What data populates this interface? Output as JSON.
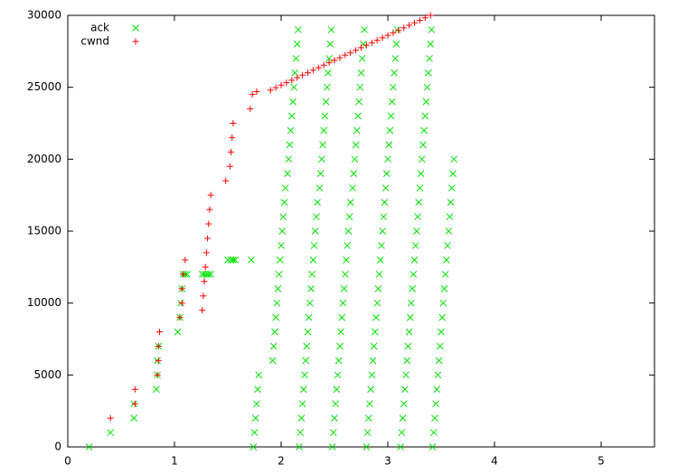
{
  "chart_data": {
    "type": "scatter",
    "xlim": [
      0,
      5.5
    ],
    "ylim": [
      0,
      30000
    ],
    "xticks": [
      0,
      1,
      2,
      3,
      4,
      5
    ],
    "yticks": [
      0,
      5000,
      10000,
      15000,
      20000,
      25000,
      30000
    ],
    "legend": "top-left",
    "series": [
      {
        "name": "ack",
        "color": "#00e000",
        "marker": "x",
        "x": [
          0.2,
          0.4,
          0.62,
          0.62,
          0.83,
          0.84,
          0.84,
          0.85,
          1.03,
          1.05,
          1.06,
          1.07,
          1.08,
          1.1,
          1.12,
          1.26,
          1.28,
          1.3,
          1.32,
          1.34,
          1.5,
          1.53,
          1.55,
          1.57,
          1.72,
          1.74,
          1.75,
          1.76,
          1.77,
          1.78,
          1.79,
          1.92,
          1.93,
          1.94,
          1.95,
          1.96,
          1.97,
          1.98,
          1.99,
          2.0,
          2.01,
          2.02,
          2.03,
          2.04,
          2.06,
          2.07,
          2.08,
          2.09,
          2.1,
          2.11,
          2.12,
          2.13,
          2.14,
          2.15,
          2.16,
          2.17,
          2.18,
          2.19,
          2.2,
          2.21,
          2.22,
          2.23,
          2.24,
          2.25,
          2.26,
          2.27,
          2.28,
          2.29,
          2.3,
          2.31,
          2.32,
          2.33,
          2.34,
          2.36,
          2.37,
          2.38,
          2.39,
          2.4,
          2.41,
          2.42,
          2.43,
          2.44,
          2.45,
          2.46,
          2.47,
          2.48,
          2.49,
          2.5,
          2.51,
          2.52,
          2.53,
          2.54,
          2.55,
          2.56,
          2.57,
          2.58,
          2.59,
          2.6,
          2.61,
          2.62,
          2.63,
          2.64,
          2.65,
          2.67,
          2.68,
          2.69,
          2.7,
          2.71,
          2.72,
          2.73,
          2.74,
          2.75,
          2.76,
          2.77,
          2.78,
          2.8,
          2.81,
          2.82,
          2.83,
          2.84,
          2.85,
          2.86,
          2.87,
          2.88,
          2.89,
          2.9,
          2.91,
          2.92,
          2.93,
          2.94,
          2.95,
          2.96,
          2.97,
          2.98,
          2.99,
          3.0,
          3.01,
          3.02,
          3.03,
          3.04,
          3.05,
          3.06,
          3.07,
          3.08,
          3.09,
          3.12,
          3.13,
          3.14,
          3.15,
          3.16,
          3.17,
          3.18,
          3.19,
          3.2,
          3.21,
          3.22,
          3.23,
          3.24,
          3.25,
          3.26,
          3.27,
          3.28,
          3.29,
          3.3,
          3.31,
          3.32,
          3.33,
          3.34,
          3.35,
          3.36,
          3.37,
          3.38,
          3.39,
          3.4,
          3.41,
          3.42,
          3.43,
          3.44,
          3.45,
          3.46,
          3.47,
          3.48,
          3.49,
          3.5,
          3.51,
          3.52,
          3.53,
          3.54,
          3.55,
          3.56,
          3.57,
          3.58,
          3.59,
          3.6,
          3.61,
          3.62
        ],
        "values": [
          0,
          1000,
          2000,
          3000,
          4000,
          5000,
          6000,
          7000,
          8000,
          9000,
          10000,
          11000,
          12000,
          12000,
          12000,
          12000,
          12000,
          12000,
          12000,
          12000,
          13000,
          13000,
          13000,
          13000,
          13000,
          0,
          1000,
          2000,
          3000,
          4000,
          5000,
          6000,
          7000,
          8000,
          9000,
          10000,
          11000,
          12000,
          13000,
          14000,
          15000,
          16000,
          17000,
          18000,
          19000,
          20000,
          21000,
          22000,
          23000,
          24000,
          25000,
          26000,
          27000,
          28000,
          29000,
          0,
          1000,
          2000,
          3000,
          4000,
          5000,
          6000,
          7000,
          8000,
          9000,
          10000,
          11000,
          12000,
          13000,
          14000,
          15000,
          16000,
          17000,
          18000,
          19000,
          20000,
          21000,
          22000,
          23000,
          24000,
          25000,
          26000,
          27000,
          28000,
          29000,
          0,
          1000,
          2000,
          3000,
          4000,
          5000,
          6000,
          7000,
          8000,
          9000,
          10000,
          11000,
          12000,
          13000,
          14000,
          15000,
          16000,
          17000,
          18000,
          19000,
          20000,
          21000,
          22000,
          23000,
          24000,
          25000,
          26000,
          27000,
          28000,
          29000,
          0,
          1000,
          2000,
          3000,
          4000,
          5000,
          6000,
          7000,
          8000,
          9000,
          10000,
          11000,
          12000,
          13000,
          14000,
          15000,
          16000,
          17000,
          18000,
          19000,
          20000,
          21000,
          22000,
          23000,
          24000,
          25000,
          26000,
          27000,
          28000,
          29000,
          0,
          1000,
          2000,
          3000,
          4000,
          5000,
          6000,
          7000,
          8000,
          9000,
          10000,
          11000,
          12000,
          13000,
          14000,
          15000,
          16000,
          17000,
          18000,
          19000,
          20000,
          21000,
          22000,
          23000,
          24000,
          25000,
          26000,
          27000,
          28000,
          29000,
          0,
          1000,
          2000,
          3000,
          4000,
          5000,
          6000,
          7000,
          8000,
          9000,
          10000,
          11000,
          12000,
          13000,
          14000,
          15000,
          16000,
          17000,
          18000,
          19000,
          20000
        ]
      },
      {
        "name": "cwnd",
        "color": "#ff0000",
        "marker": "+",
        "x": [
          0.4,
          0.63,
          0.63,
          0.84,
          0.85,
          0.85,
          0.86,
          1.05,
          1.07,
          1.07,
          1.08,
          1.1,
          1.26,
          1.27,
          1.28,
          1.29,
          1.3,
          1.31,
          1.32,
          1.33,
          1.34,
          1.48,
          1.52,
          1.53,
          1.54,
          1.55,
          1.71,
          1.73,
          1.77,
          1.9,
          1.95,
          2.0,
          2.05,
          2.1,
          2.15,
          2.2,
          2.25,
          2.3,
          2.35,
          2.4,
          2.45,
          2.5,
          2.55,
          2.6,
          2.65,
          2.7,
          2.75,
          2.8,
          2.85,
          2.9,
          2.95,
          3.0,
          3.05,
          3.1,
          3.15,
          3.2,
          3.25,
          3.3,
          3.35,
          3.4
        ],
        "values": [
          2000,
          3000,
          4000,
          5000,
          6000,
          7000,
          8000,
          9000,
          10000,
          11000,
          12000,
          13000,
          9500,
          10500,
          11500,
          12500,
          13500,
          14500,
          15500,
          16500,
          17500,
          18500,
          19500,
          20500,
          21500,
          22500,
          23500,
          24500,
          24700,
          24800,
          24970,
          25150,
          25320,
          25490,
          25670,
          25840,
          26010,
          26190,
          26360,
          26530,
          26710,
          26880,
          27050,
          27230,
          27400,
          27570,
          27750,
          27920,
          28090,
          28270,
          28440,
          28610,
          28790,
          28960,
          29130,
          29310,
          29480,
          29650,
          29830,
          30000
        ]
      }
    ]
  }
}
